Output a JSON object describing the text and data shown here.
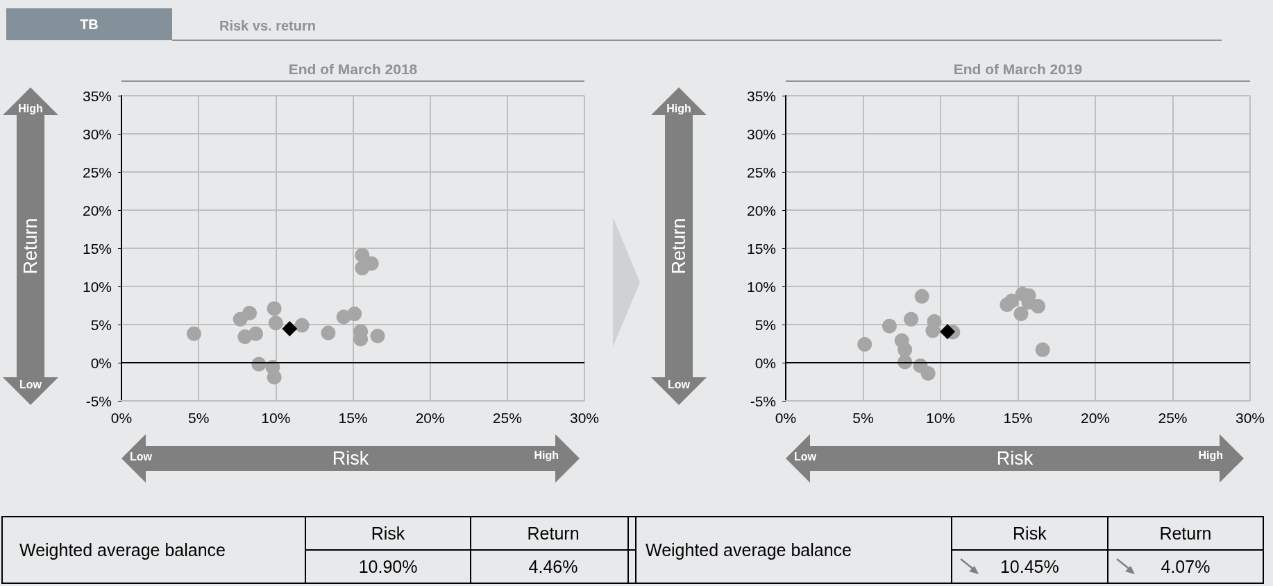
{
  "chart_data": [
    {
      "type": "scatter",
      "title": "End of March 2018",
      "xlabel": "Risk",
      "ylabel": "Return",
      "annotations": [
        "TB",
        "Risk vs. return",
        "High",
        "Low",
        "Low",
        "High",
        "Weighted average balance",
        "Risk",
        "Return",
        "10.90%",
        "4.46%"
      ],
      "xlim": [
        0,
        30
      ],
      "xticks": [
        {
          "value": 0,
          "label": "0%"
        },
        {
          "value": 5,
          "label": "5%"
        },
        {
          "value": 10,
          "label": "10%"
        },
        {
          "value": 15,
          "label": "15%"
        },
        {
          "value": 20,
          "label": "20%"
        },
        {
          "value": 25,
          "label": "25%"
        },
        {
          "value": 30,
          "label": "30%"
        }
      ],
      "ylim": [
        -5,
        35
      ],
      "yticks": [
        {
          "value": -5,
          "label": "-5%"
        },
        {
          "value": 0,
          "label": "0%"
        },
        {
          "value": 5,
          "label": "5%"
        },
        {
          "value": 10,
          "label": "10%"
        },
        {
          "value": 15,
          "label": "15%"
        },
        {
          "value": 20,
          "label": "20%"
        },
        {
          "value": 25,
          "label": "25%"
        },
        {
          "value": 30,
          "label": "30%"
        },
        {
          "value": 35,
          "label": "35%"
        }
      ],
      "grid": true,
      "marker": "circle",
      "ref_lines": [
        {
          "axis": "y",
          "value": 0,
          "color": "#000000"
        }
      ],
      "series": [
        {
          "color": "#a6a6a6",
          "x": [
            4.7,
            7.7,
            8.3,
            9.9,
            10.0,
            8.0,
            8.7,
            8.9,
            9.8,
            9.9,
            11.7,
            13.4,
            14.4,
            15.1,
            15.6,
            16.2,
            15.6,
            15.5,
            15.5,
            16.6
          ],
          "values": [
            3.8,
            5.7,
            6.5,
            7.1,
            5.2,
            3.4,
            3.8,
            -0.2,
            -0.6,
            -1.9,
            4.9,
            3.9,
            6.0,
            6.4,
            14.1,
            13.0,
            12.4,
            4.1,
            3.1,
            3.5
          ]
        },
        {
          "color": "#000000",
          "marker": "diamond",
          "x": [
            10.9
          ],
          "values": [
            4.46
          ]
        }
      ]
    },
    {
      "type": "scatter",
      "title": "End of March 2019",
      "xlabel": "Risk",
      "ylabel": "Return",
      "annotations": [
        "High",
        "Low",
        "Low",
        "High",
        "Weighted average balance",
        "Risk",
        "Return",
        "10.45%",
        "4.07%"
      ],
      "xlim": [
        0,
        30
      ],
      "xticks": [
        {
          "value": 0,
          "label": "0%"
        },
        {
          "value": 5,
          "label": "5%"
        },
        {
          "value": 10,
          "label": "10%"
        },
        {
          "value": 15,
          "label": "15%"
        },
        {
          "value": 20,
          "label": "20%"
        },
        {
          "value": 25,
          "label": "25%"
        },
        {
          "value": 30,
          "label": "30%"
        }
      ],
      "ylim": [
        -5,
        35
      ],
      "yticks": [
        {
          "value": -5,
          "label": "-5%"
        },
        {
          "value": 0,
          "label": "0%"
        },
        {
          "value": 5,
          "label": "5%"
        },
        {
          "value": 10,
          "label": "10%"
        },
        {
          "value": 15,
          "label": "15%"
        },
        {
          "value": 20,
          "label": "20%"
        },
        {
          "value": 25,
          "label": "25%"
        },
        {
          "value": 30,
          "label": "30%"
        },
        {
          "value": 35,
          "label": "35%"
        }
      ],
      "grid": true,
      "marker": "circle",
      "ref_lines": [
        {
          "axis": "y",
          "value": 0,
          "color": "#000000"
        }
      ],
      "series": [
        {
          "color": "#a6a6a6",
          "x": [
            5.1,
            6.7,
            8.1,
            8.8,
            9.6,
            9.5,
            10.8,
            7.5,
            7.7,
            7.7,
            8.7,
            9.2,
            14.3,
            14.6,
            15.3,
            15.7,
            15.7,
            16.3,
            15.2,
            16.6
          ],
          "values": [
            2.4,
            4.8,
            5.7,
            8.7,
            5.4,
            4.2,
            4.0,
            2.9,
            1.7,
            0.1,
            -0.4,
            -1.4,
            7.6,
            8.1,
            9.0,
            8.8,
            7.9,
            7.4,
            6.4,
            1.7
          ]
        },
        {
          "color": "#000000",
          "marker": "diamond",
          "x": [
            10.45
          ],
          "values": [
            4.07
          ]
        }
      ]
    }
  ]
}
